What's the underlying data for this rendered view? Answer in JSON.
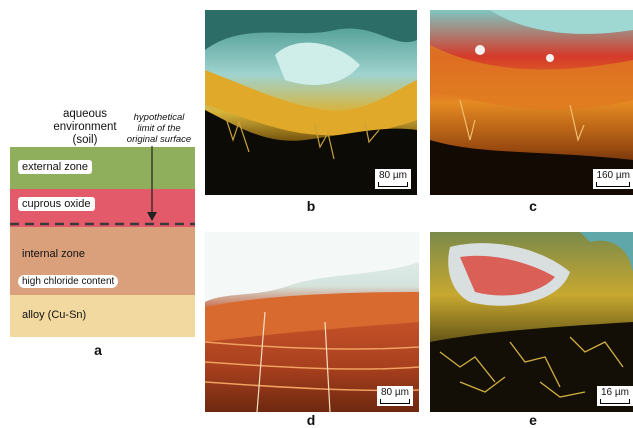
{
  "panel_a": {
    "environment_label_line1": "aqueous",
    "environment_label_line2": "environment",
    "environment_label_line3": "(soil)",
    "hypothetical_line1": "hypothetical",
    "hypothetical_line2": "limit of the",
    "hypothetical_line3": "original surface",
    "layers": {
      "external": "external zone",
      "cuprous": "cuprous oxide",
      "internal": "internal zone",
      "chloride": "high chloride content",
      "alloy": "alloy (Cu-Sn)"
    },
    "letter": "a",
    "colors": {
      "external": "#8faf5c",
      "cuprous": "#e35a6a",
      "internal": "#d9a07b",
      "alloy": "#f2d9a0"
    }
  },
  "panels": [
    {
      "letter": "b",
      "scale": "80 µm"
    },
    {
      "letter": "c",
      "scale": "160 µm"
    },
    {
      "letter": "d",
      "scale": "80 µm"
    },
    {
      "letter": "e",
      "scale": "16 µm"
    }
  ]
}
